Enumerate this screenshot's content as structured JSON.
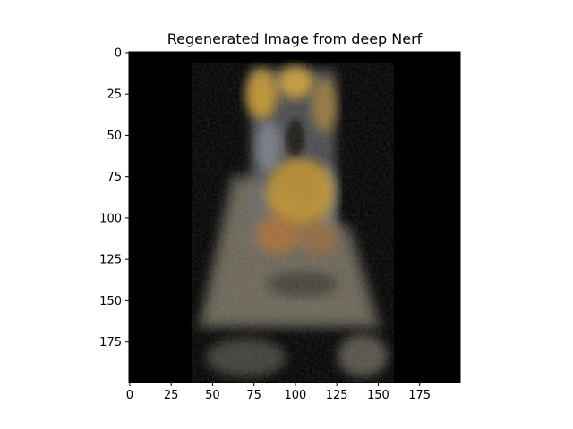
{
  "chart_data": {
    "type": "heatmap",
    "title": "Regenerated Image from deep Nerf",
    "xlabel": "",
    "ylabel": "",
    "image_size": [
      200,
      200
    ],
    "xlim": [
      0,
      199
    ],
    "ylim": [
      199,
      0
    ],
    "x_ticks": [
      0,
      25,
      50,
      75,
      100,
      125,
      150,
      175
    ],
    "y_ticks": [
      0,
      25,
      50,
      75,
      100,
      125,
      150,
      175
    ],
    "x_tick_labels": [
      "0",
      "25",
      "50",
      "75",
      "100",
      "125",
      "150",
      "175"
    ],
    "y_tick_labels": [
      "0",
      "25",
      "50",
      "75",
      "100",
      "125",
      "150",
      "175"
    ],
    "grid": false,
    "background_color": "#000000",
    "palette": {
      "golden": "#c99a2e",
      "orange": "#b8741f",
      "grey": "#7a7668",
      "bluegrey": "#6a7280",
      "dark": "#20201c"
    }
  }
}
